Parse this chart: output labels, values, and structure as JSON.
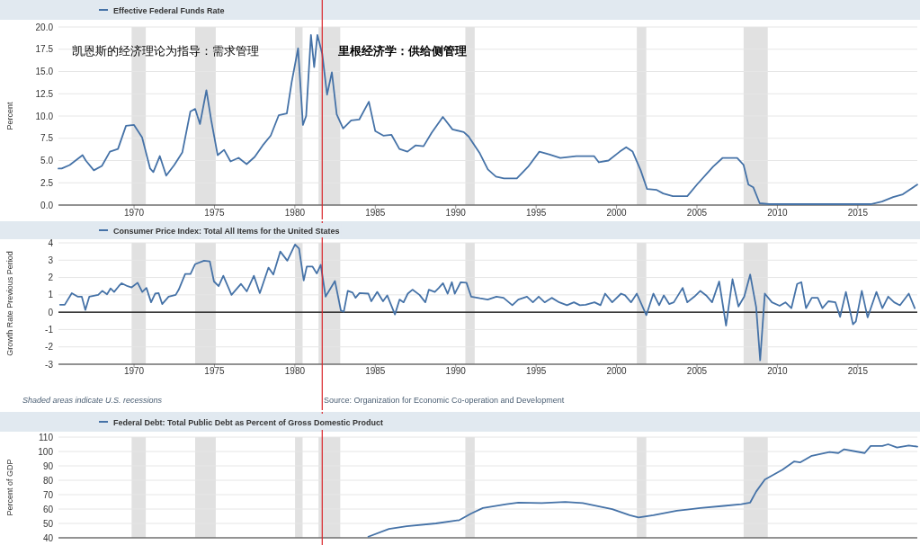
{
  "chart_data": [
    {
      "type": "line",
      "legend": "top left",
      "ylabel": "Percent",
      "xlim": [
        1965.3,
        2018.7
      ],
      "xticks": [
        1970,
        1975,
        1980,
        1985,
        1990,
        1995,
        2000,
        2005,
        2010,
        2015
      ],
      "ylim": [
        0,
        20
      ],
      "yticks": [
        {
          "value": 0,
          "label": "0.0"
        },
        {
          "value": 2.5,
          "label": "2.5"
        },
        {
          "value": 5,
          "label": "5.0"
        },
        {
          "value": 7.5,
          "label": "7.5"
        },
        {
          "value": 10,
          "label": "10.0"
        },
        {
          "value": 12.5,
          "label": "12.5"
        },
        {
          "value": 15,
          "label": "15.0"
        },
        {
          "value": 17.5,
          "label": "17.5"
        },
        {
          "value": 20,
          "label": "20.0"
        }
      ],
      "grid": "y",
      "annotations": [
        "凯恩斯的经济理论为指导：需求管理",
        "里根经济学：供给侧管理"
      ],
      "ref_lines": [
        {
          "axis": "x",
          "value": 1981.7,
          "color": "#d9262b"
        }
      ],
      "bands": [
        {
          "axis": "x",
          "from": 1969.85,
          "to": 1970.73,
          "color": "#e1e1e1"
        },
        {
          "axis": "x",
          "from": 1973.8,
          "to": 1975.08,
          "color": "#e1e1e1"
        },
        {
          "axis": "x",
          "from": 1980.01,
          "to": 1980.48,
          "color": "#e1e1e1"
        },
        {
          "axis": "x",
          "from": 1981.47,
          "to": 1982.82,
          "color": "#e1e1e1"
        },
        {
          "axis": "x",
          "from": 1990.6,
          "to": 1991.18,
          "color": "#e1e1e1"
        },
        {
          "axis": "x",
          "from": 2001.26,
          "to": 2001.85,
          "color": "#e1e1e1"
        },
        {
          "axis": "x",
          "from": 2007.9,
          "to": 2009.4,
          "color": "#e1e1e1"
        }
      ],
      "series": [
        {
          "name": "Effective Federal Funds Rate",
          "color": "#4572a7",
          "x": [
            1965.3,
            1965.5,
            1966,
            1966.8,
            1967,
            1967.5,
            1968,
            1968.5,
            1969,
            1969.5,
            1970,
            1970.5,
            1971,
            1971.2,
            1971.6,
            1972,
            1972.5,
            1973,
            1973.5,
            1973.8,
            1974.1,
            1974.5,
            1974.8,
            1975.2,
            1975.6,
            1976,
            1976.5,
            1977,
            1977.5,
            1978,
            1978.5,
            1979,
            1979.5,
            1979.8,
            1980.2,
            1980.5,
            1980.7,
            1981,
            1981.2,
            1981.4,
            1981.7,
            1982,
            1982.3,
            1982.6,
            1983,
            1983.5,
            1984,
            1984.6,
            1985,
            1985.5,
            1986,
            1986.5,
            1987,
            1987.5,
            1988,
            1988.5,
            1989.2,
            1989.8,
            1990.5,
            1990.8,
            1991.5,
            1992,
            1992.5,
            1993,
            1993.8,
            1994.5,
            1995.2,
            1995.8,
            1996.5,
            1997.5,
            1998.6,
            1998.9,
            1999.5,
            2000.2,
            2000.6,
            2001,
            2001.5,
            2001.9,
            2002.5,
            2002.9,
            2003.5,
            2004.4,
            2005,
            2006,
            2006.6,
            2007.5,
            2007.9,
            2008.2,
            2008.5,
            2008.9,
            2009.5,
            2012,
            2015.8,
            2016.5,
            2017.2,
            2017.8,
            2018.7
          ],
          "values": [
            4.1,
            4.1,
            4.5,
            5.6,
            5.0,
            3.9,
            4.4,
            6.0,
            6.3,
            8.9,
            9.0,
            7.6,
            4.1,
            3.7,
            5.5,
            3.3,
            4.5,
            5.9,
            10.5,
            10.8,
            9.1,
            12.9,
            9.5,
            5.6,
            6.2,
            4.9,
            5.3,
            4.6,
            5.4,
            6.7,
            7.8,
            10.1,
            10.3,
            13.8,
            17.6,
            9.0,
            10.0,
            19.1,
            15.5,
            19.1,
            17.0,
            12.4,
            14.9,
            10.2,
            8.6,
            9.5,
            9.6,
            11.6,
            8.3,
            7.8,
            7.9,
            6.3,
            6.0,
            6.7,
            6.6,
            8.1,
            9.9,
            8.5,
            8.2,
            7.7,
            5.8,
            4.0,
            3.2,
            3.0,
            3.0,
            4.3,
            6.0,
            5.7,
            5.3,
            5.5,
            5.5,
            4.8,
            5.0,
            6.0,
            6.5,
            6.0,
            3.9,
            1.8,
            1.7,
            1.3,
            1.0,
            1.0,
            2.3,
            4.3,
            5.3,
            5.3,
            4.5,
            2.3,
            2.0,
            0.2,
            0.1,
            0.1,
            0.1,
            0.4,
            0.9,
            1.2,
            2.3
          ]
        }
      ]
    },
    {
      "type": "line",
      "legend": "top left",
      "ylabel": "Growth Rate Previous Period",
      "xlim": [
        1965.3,
        2018.7
      ],
      "xticks": [
        1970,
        1975,
        1980,
        1985,
        1990,
        1995,
        2000,
        2005,
        2010,
        2015
      ],
      "ylim": [
        -3,
        4
      ],
      "yticks": [
        -3,
        -2,
        -1,
        0,
        1,
        2,
        3,
        4
      ],
      "grid": "y",
      "annotations": [
        "Shaded areas indicate U.S. recessions",
        "Source: Organization for Economic Co-operation and Development"
      ],
      "ref_lines": [
        {
          "axis": "y",
          "value": 0,
          "color": "#000000"
        },
        {
          "axis": "x",
          "value": 1981.7,
          "color": "#d9262b"
        }
      ],
      "bands": [
        {
          "axis": "x",
          "from": 1969.85,
          "to": 1970.73,
          "color": "#e1e1e1"
        },
        {
          "axis": "x",
          "from": 1973.8,
          "to": 1975.08,
          "color": "#e1e1e1"
        },
        {
          "axis": "x",
          "from": 1980.01,
          "to": 1980.48,
          "color": "#e1e1e1"
        },
        {
          "axis": "x",
          "from": 1981.47,
          "to": 1982.82,
          "color": "#e1e1e1"
        },
        {
          "axis": "x",
          "from": 1990.6,
          "to": 1991.18,
          "color": "#e1e1e1"
        },
        {
          "axis": "x",
          "from": 2001.26,
          "to": 2001.85,
          "color": "#e1e1e1"
        },
        {
          "axis": "x",
          "from": 2007.9,
          "to": 2009.4,
          "color": "#e1e1e1"
        }
      ],
      "series": [
        {
          "name": "Consumer Price Index: Total All Items for the United States",
          "color": "#4572a7",
          "x": [
            1965.4,
            1965.69,
            1966.13,
            1966.49,
            1966.75,
            1966.97,
            1967.22,
            1967.77,
            1968.03,
            1968.32,
            1968.54,
            1968.76,
            1969.05,
            1969.23,
            1969.6,
            1969.85,
            1970.22,
            1970.51,
            1970.77,
            1971.06,
            1971.31,
            1971.53,
            1971.75,
            1972.15,
            1972.59,
            1972.78,
            1973.18,
            1973.51,
            1973.8,
            1974.35,
            1974.71,
            1974.97,
            1975.26,
            1975.55,
            1976.06,
            1976.65,
            1977.01,
            1977.45,
            1977.82,
            1978.36,
            1978.66,
            1979.09,
            1979.53,
            1980.01,
            1980.26,
            1980.55,
            1980.74,
            1981.1,
            1981.36,
            1981.61,
            1981.91,
            1982.49,
            1982.86,
            1983.04,
            1983.29,
            1983.59,
            1983.77,
            1984.02,
            1984.57,
            1984.75,
            1985.12,
            1985.48,
            1985.74,
            1986.22,
            1986.51,
            1986.76,
            1987.02,
            1987.31,
            1987.75,
            1988.11,
            1988.33,
            1988.7,
            1988.95,
            1989.21,
            1989.5,
            1989.76,
            1989.94,
            1990.31,
            1990.67,
            1990.96,
            1991.51,
            1991.99,
            1992.53,
            1992.97,
            1993.52,
            1993.89,
            1994.43,
            1994.8,
            1995.16,
            1995.53,
            1995.97,
            1996.44,
            1996.92,
            1997.35,
            1997.72,
            1998.08,
            1998.63,
            1999.0,
            1999.29,
            1999.73,
            2000.28,
            2000.53,
            2000.9,
            2001.26,
            2001.85,
            2002.29,
            2002.65,
            2002.94,
            2003.27,
            2003.56,
            2004.11,
            2004.4,
            2004.84,
            2005.21,
            2005.57,
            2005.94,
            2006.38,
            2006.81,
            2007.21,
            2007.58,
            2007.94,
            2008.31,
            2008.68,
            2008.93,
            2009.22,
            2009.66,
            2010.14,
            2010.5,
            2010.87,
            2011.23,
            2011.49,
            2011.78,
            2012.14,
            2012.51,
            2012.8,
            2013.17,
            2013.61,
            2013.9,
            2014.26,
            2014.7,
            2014.88,
            2015.25,
            2015.61,
            2016.16,
            2016.53,
            2016.89,
            2017.26,
            2017.62,
            2018.17,
            2018.54
          ],
          "values": [
            0.43,
            0.43,
            1.1,
            0.9,
            0.9,
            0.13,
            0.9,
            1.0,
            1.23,
            1.03,
            1.37,
            1.17,
            1.5,
            1.67,
            1.5,
            1.43,
            1.7,
            1.17,
            1.4,
            0.57,
            1.07,
            1.1,
            0.47,
            0.9,
            1.0,
            1.3,
            2.2,
            2.2,
            2.77,
            2.97,
            2.93,
            1.77,
            1.5,
            2.1,
            1.0,
            1.63,
            1.2,
            2.1,
            1.1,
            2.57,
            2.17,
            3.5,
            2.97,
            3.9,
            3.67,
            1.83,
            2.63,
            2.63,
            2.23,
            2.73,
            0.9,
            1.8,
            0.1,
            0.03,
            1.23,
            1.13,
            0.83,
            1.1,
            1.07,
            0.63,
            1.17,
            0.63,
            0.97,
            -0.13,
            0.73,
            0.57,
            1.07,
            1.3,
            1.0,
            0.57,
            1.3,
            1.17,
            1.4,
            1.67,
            1.07,
            1.73,
            1.07,
            1.73,
            1.7,
            0.9,
            0.8,
            0.73,
            0.9,
            0.83,
            0.4,
            0.73,
            0.9,
            0.57,
            0.9,
            0.57,
            0.83,
            0.57,
            0.4,
            0.57,
            0.4,
            0.43,
            0.57,
            0.4,
            1.07,
            0.57,
            1.07,
            0.97,
            0.57,
            1.07,
            -0.17,
            1.07,
            0.4,
            0.97,
            0.47,
            0.57,
            1.4,
            0.57,
            0.9,
            1.23,
            0.97,
            0.57,
            1.77,
            -0.77,
            1.9,
            0.33,
            0.9,
            2.17,
            0.3,
            -2.77,
            1.07,
            0.57,
            0.37,
            0.57,
            0.23,
            1.63,
            1.73,
            0.23,
            0.83,
            0.83,
            0.23,
            0.63,
            0.57,
            -0.27,
            1.17,
            -0.7,
            -0.53,
            1.23,
            -0.3,
            1.17,
            0.23,
            0.9,
            0.57,
            0.4,
            1.07,
            0.23
          ]
        }
      ]
    },
    {
      "type": "line",
      "legend": "top left",
      "ylabel": "Percent of GDP",
      "tick_labels": "y",
      "xlim": [
        1965.3,
        2018.7
      ],
      "ylim": [
        40,
        110
      ],
      "yticks": [
        40,
        50,
        60,
        70,
        80,
        90,
        100,
        110
      ],
      "grid": "y",
      "ref_lines": [
        {
          "axis": "x",
          "value": 1981.7,
          "color": "#d9262b"
        }
      ],
      "bands": [
        {
          "axis": "x",
          "from": 1969.85,
          "to": 1970.73,
          "color": "#e1e1e1"
        },
        {
          "axis": "x",
          "from": 1973.8,
          "to": 1975.08,
          "color": "#e1e1e1"
        },
        {
          "axis": "x",
          "from": 1980.01,
          "to": 1980.48,
          "color": "#e1e1e1"
        },
        {
          "axis": "x",
          "from": 1981.47,
          "to": 1982.82,
          "color": "#e1e1e1"
        },
        {
          "axis": "x",
          "from": 1990.6,
          "to": 1991.18,
          "color": "#e1e1e1"
        },
        {
          "axis": "x",
          "from": 2001.26,
          "to": 2001.85,
          "color": "#e1e1e1"
        },
        {
          "axis": "x",
          "from": 2007.9,
          "to": 2009.4,
          "color": "#e1e1e1"
        }
      ],
      "series": [
        {
          "name": "Federal Debt: Total Public Debt as Percent of Gross Domestic Product",
          "color": "#4572a7",
          "x": [
            1984.57,
            1985.85,
            1986.95,
            1988.77,
            1990.23,
            1990.96,
            1991.69,
            1993.15,
            1993.89,
            1995.35,
            1996.81,
            1997.9,
            1999.73,
            2000.82,
            2001.37,
            2002.29,
            2003.75,
            2005.21,
            2006.67,
            2007.76,
            2008.31,
            2008.68,
            2009.22,
            2010.32,
            2011.05,
            2011.41,
            2012.14,
            2013.24,
            2013.79,
            2014.15,
            2014.88,
            2015.43,
            2015.8,
            2016.53,
            2016.89,
            2017.44,
            2018.17,
            2018.7
          ],
          "values": [
            40.8,
            46.2,
            48.1,
            50.0,
            52.3,
            56.9,
            60.7,
            63.4,
            64.5,
            64.1,
            64.9,
            64.1,
            59.9,
            55.7,
            54.2,
            55.7,
            58.8,
            60.7,
            62.2,
            63.4,
            64.5,
            72.1,
            80.5,
            87.4,
            93.1,
            92.4,
            97.0,
            99.6,
            98.9,
            101.5,
            100.0,
            98.9,
            103.8,
            103.8,
            105.0,
            102.7,
            104.2,
            103.4
          ]
        }
      ]
    }
  ]
}
